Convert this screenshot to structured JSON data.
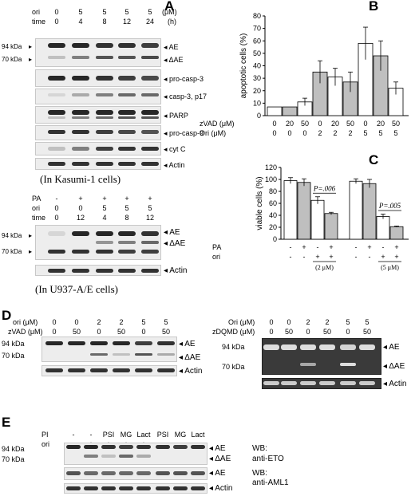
{
  "panels": {
    "A": "A",
    "B": "B",
    "C": "C",
    "D": "D",
    "E": "E"
  },
  "panel_a": {
    "top_rows": [
      {
        "name": "ori",
        "values": [
          "0",
          "5",
          "5",
          "5",
          "5"
        ],
        "unit": "(μM)"
      },
      {
        "name": "time",
        "values": [
          "0",
          "4",
          "8",
          "12",
          "24"
        ],
        "unit": "(h)"
      }
    ],
    "blot_labels": [
      "AE",
      "ΔAE",
      "pro-casp-3",
      "casp-3, p17",
      "PARP",
      "pro-casp-9",
      "cyt C",
      "Actin"
    ],
    "mw": [
      "94 kDa",
      "70 kDa"
    ],
    "caption_top": "(In Kasumi-1 cells)",
    "bottom_rows": [
      {
        "name": "PA",
        "values": [
          "-",
          "+",
          "+",
          "+",
          "+"
        ]
      },
      {
        "name": "ori",
        "values": [
          "0",
          "0",
          "5",
          "5",
          "5"
        ]
      },
      {
        "name": "time",
        "values": [
          "0",
          "12",
          "4",
          "8",
          "12"
        ]
      }
    ],
    "bottom_labels": [
      "AE",
      "ΔAE",
      "Actin"
    ],
    "caption_bottom": "(In U937-A/E cells)"
  },
  "panel_d": {
    "left_rows": [
      {
        "name": "ori",
        "unit": "(μM)",
        "values": [
          "0",
          "0",
          "2",
          "2",
          "5",
          "5"
        ]
      },
      {
        "name": "zVAD",
        "unit": "(μM)",
        "values": [
          "0",
          "50",
          "0",
          "50",
          "0",
          "50"
        ]
      }
    ],
    "right_rows": [
      {
        "name": "Ori",
        "unit": "(μM)",
        "values": [
          "0",
          "0",
          "2",
          "2",
          "5",
          "5"
        ]
      },
      {
        "name": "zDQMD",
        "unit": "(μM)",
        "values": [
          "0",
          "50",
          "0",
          "50",
          "0",
          "50"
        ]
      }
    ],
    "labels": [
      "AE",
      "ΔAE",
      "Actin"
    ],
    "mw": [
      "94 kDa",
      "70 kDa"
    ]
  },
  "panel_e": {
    "pi_label": "PI",
    "pi_values": [
      "-",
      "-",
      "PSI",
      "MG",
      "Lact",
      "PSI",
      "MG",
      "Lact"
    ],
    "ori_label": "ori",
    "ori_values": [
      "-",
      "+",
      "+",
      "+",
      "+",
      "-",
      "-",
      "-"
    ],
    "mw": [
      "94 kDa",
      "70 kDa"
    ],
    "labels": [
      "AE",
      "ΔAE",
      "AE",
      "Actin"
    ],
    "wb1_line1": "WB:",
    "wb1_line2": "anti-ETO",
    "wb2_line1": "WB:",
    "wb2_line2": "anti-AML1"
  },
  "chart_data": [
    {
      "type": "bar",
      "panel": "B",
      "ylabel": "apoptotic cells (%)",
      "ylim": [
        0,
        80
      ],
      "yticks": [
        0,
        10,
        20,
        30,
        40,
        50,
        60,
        70,
        80
      ],
      "row1_label": "zVAD",
      "row1_unit": "(μM)",
      "row1": [
        "0",
        "20",
        "50",
        "0",
        "20",
        "50",
        "0",
        "20",
        "50"
      ],
      "row2_label": "Ori",
      "row2_unit": "(μM)",
      "row2": [
        "0",
        "0",
        "0",
        "2",
        "2",
        "2",
        "5",
        "5",
        "5"
      ],
      "values": [
        7,
        7,
        11,
        35,
        31,
        27,
        58,
        48,
        22
      ],
      "errors": [
        0,
        0,
        3,
        9,
        7,
        8,
        13,
        12,
        5
      ],
      "colors": [
        "#ffffff",
        "#bfbfbf",
        "#ffffff",
        "#bfbfbf",
        "#ffffff",
        "#bfbfbf",
        "#ffffff",
        "#bfbfbf",
        "#ffffff"
      ]
    },
    {
      "type": "bar",
      "panel": "C",
      "ylabel": "viable cells (%)",
      "ylim": [
        0,
        120
      ],
      "yticks": [
        0,
        20,
        40,
        60,
        80,
        100,
        120
      ],
      "row1_label": "PA",
      "row1": [
        "-",
        "+",
        "-",
        "+",
        "-",
        "+",
        "-",
        "+"
      ],
      "row2_label": "ori",
      "row2": [
        "-",
        "-",
        "+",
        "+",
        "-",
        "-",
        "+",
        "+"
      ],
      "values": [
        98,
        95,
        65,
        43,
        97,
        93,
        38,
        21
      ],
      "errors": [
        5,
        6,
        6,
        2,
        4,
        7,
        4,
        1
      ],
      "colors": [
        "#ffffff",
        "#bfbfbf",
        "#ffffff",
        "#bfbfbf",
        "#ffffff",
        "#bfbfbf",
        "#ffffff",
        "#bfbfbf"
      ],
      "annotations": [
        "P=.006",
        "P=.005"
      ],
      "dose_labels": [
        "(2 μM)",
        "(5 μM)"
      ]
    }
  ]
}
